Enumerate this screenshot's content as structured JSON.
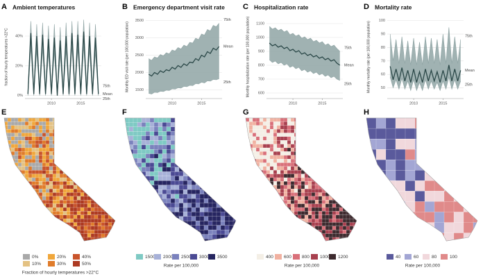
{
  "chart_data": [
    {
      "type": "line",
      "panel_label": "A",
      "title": "Ambient temperatures",
      "ylabel": "fraction of hourly temperatures >22°C",
      "x": [
        2006,
        2006.5,
        2007,
        2007.5,
        2008,
        2008.5,
        2009,
        2009.5,
        2010,
        2010.5,
        2011,
        2011.5,
        2012,
        2012.5,
        2013,
        2013.5,
        2014,
        2014.5,
        2015,
        2015.5,
        2016,
        2016.5,
        2017,
        2017.5,
        2018
      ],
      "xlim": [
        2005.5,
        2018.5
      ],
      "xticks": [
        2010,
        2015
      ],
      "ylim": [
        -2,
        54
      ],
      "yticks": [
        {
          "value": 0,
          "label": "0%"
        },
        {
          "value": 20,
          "label": "20%"
        },
        {
          "value": 40,
          "label": "40%"
        }
      ],
      "grid": true,
      "band_color": "#8fa4a4",
      "series": [
        {
          "name": "75th",
          "color": "#8fa4a4",
          "values": [
            4,
            50,
            4,
            48,
            4,
            49,
            3,
            47,
            3,
            48,
            3,
            46,
            4,
            49,
            4,
            50,
            4,
            50,
            4,
            51,
            4,
            49,
            4,
            48,
            4
          ]
        },
        {
          "name": "Mean",
          "color": "#2b4848",
          "values": [
            1,
            42,
            1,
            40,
            1,
            41,
            1,
            38,
            1,
            39,
            0,
            37,
            1,
            40,
            1,
            42,
            1,
            41,
            1,
            43,
            1,
            40,
            1,
            39,
            1
          ]
        },
        {
          "name": "25th",
          "color": "#8fa4a4",
          "values": [
            0,
            32,
            0,
            30,
            0,
            31,
            0,
            28,
            0,
            29,
            0,
            27,
            0,
            30,
            0,
            32,
            0,
            31,
            0,
            33,
            0,
            30,
            0,
            29,
            0
          ]
        }
      ]
    },
    {
      "type": "line",
      "panel_label": "B",
      "title": "Emergency department visit rate",
      "ylabel": "Monthly ED visit rate (per 100,000 population)",
      "x": [
        2006,
        2006.5,
        2007,
        2007.5,
        2008,
        2008.5,
        2009,
        2009.5,
        2010,
        2010.5,
        2011,
        2011.5,
        2012,
        2012.5,
        2013,
        2013.5,
        2014,
        2014.5,
        2015,
        2015.5,
        2016,
        2016.5,
        2017,
        2017.5,
        2018
      ],
      "xlim": [
        2005.5,
        2018.5
      ],
      "xticks": [
        2010,
        2015
      ],
      "ylim": [
        1250,
        3650
      ],
      "yticks": [
        1500,
        2000,
        2500,
        3000,
        3500
      ],
      "grid": true,
      "band_color": "#8fa4a4",
      "series": [
        {
          "name": "75th",
          "color": "#8fa4a4",
          "values": [
            2400,
            2350,
            2450,
            2420,
            2520,
            2480,
            2570,
            2540,
            2650,
            2620,
            2720,
            2680,
            2790,
            2750,
            2870,
            2850,
            2990,
            2950,
            3110,
            3080,
            3240,
            3200,
            3360,
            3320,
            3420
          ]
        },
        {
          "name": "Mean",
          "color": "#2b4848",
          "values": [
            1950,
            1900,
            2000,
            1950,
            2050,
            2000,
            2080,
            2050,
            2150,
            2100,
            2200,
            2150,
            2250,
            2200,
            2300,
            2280,
            2400,
            2350,
            2500,
            2450,
            2600,
            2550,
            2700,
            2650,
            2750
          ]
        },
        {
          "name": "25th",
          "color": "#8fa4a4",
          "values": [
            1400,
            1380,
            1430,
            1420,
            1460,
            1450,
            1490,
            1480,
            1530,
            1520,
            1560,
            1550,
            1600,
            1590,
            1630,
            1620,
            1680,
            1670,
            1720,
            1700,
            1760,
            1750,
            1800,
            1790,
            1820
          ]
        }
      ]
    },
    {
      "type": "line",
      "panel_label": "C",
      "title": "Hospitalization rate",
      "ylabel": "Monthly hospitalization rate (per 100,000 population)",
      "x": [
        2006,
        2006.5,
        2007,
        2007.5,
        2008,
        2008.5,
        2009,
        2009.5,
        2010,
        2010.5,
        2011,
        2011.5,
        2012,
        2012.5,
        2013,
        2013.5,
        2014,
        2014.5,
        2015,
        2015.5,
        2016,
        2016.5,
        2017,
        2017.5,
        2018
      ],
      "xlim": [
        2005.5,
        2018.5
      ],
      "xticks": [
        2010,
        2015
      ],
      "ylim": [
        560,
        1160
      ],
      "yticks": [
        600,
        700,
        800,
        900,
        1000,
        1100
      ],
      "grid": true,
      "band_color": "#8fa4a4",
      "series": [
        {
          "name": "75th",
          "color": "#8fa4a4",
          "values": [
            1080,
            1060,
            1070,
            1050,
            1060,
            1040,
            1050,
            1020,
            1030,
            1010,
            1020,
            995,
            1005,
            985,
            995,
            970,
            980,
            960,
            970,
            945,
            955,
            935,
            945,
            920,
            900
          ]
        },
        {
          "name": "Mean",
          "color": "#2b4848",
          "values": [
            960,
            940,
            950,
            930,
            940,
            920,
            930,
            905,
            915,
            895,
            905,
            880,
            890,
            870,
            880,
            860,
            870,
            850,
            860,
            840,
            850,
            830,
            840,
            815,
            800
          ]
        },
        {
          "name": "25th",
          "color": "#8fa4a4",
          "values": [
            840,
            820,
            830,
            810,
            820,
            800,
            810,
            785,
            795,
            775,
            785,
            760,
            770,
            750,
            760,
            740,
            750,
            730,
            740,
            720,
            730,
            710,
            720,
            700,
            690
          ]
        }
      ]
    },
    {
      "type": "line",
      "panel_label": "D",
      "title": "Mortality rate",
      "ylabel": "Monthly mortality rate (per 100,000 population)",
      "x": [
        2006,
        2006.5,
        2007,
        2007.5,
        2008,
        2008.5,
        2009,
        2009.5,
        2010,
        2010.5,
        2011,
        2011.5,
        2012,
        2012.5,
        2013,
        2013.5,
        2014,
        2014.5,
        2015,
        2015.5,
        2016,
        2016.5,
        2017,
        2017.5,
        2018
      ],
      "xlim": [
        2005.5,
        2018.5
      ],
      "xticks": [
        2010,
        2015
      ],
      "ylim": [
        42,
        104
      ],
      "yticks": [
        50,
        60,
        70,
        80,
        90,
        100
      ],
      "grid": true,
      "band_color": "#8fa4a4",
      "series": [
        {
          "name": "75th",
          "color": "#8fa4a4",
          "values": [
            90,
            70,
            86,
            68,
            88,
            68,
            85,
            67,
            87,
            67,
            84,
            67,
            88,
            68,
            87,
            68,
            86,
            67,
            90,
            68,
            95,
            68,
            88,
            68,
            86
          ]
        },
        {
          "name": "Mean",
          "color": "#2b4848",
          "values": [
            66,
            56,
            64,
            55,
            65,
            55,
            63,
            54,
            64,
            54,
            62,
            54,
            64,
            55,
            63,
            55,
            62,
            54,
            63,
            55,
            67,
            55,
            64,
            55,
            63
          ]
        },
        {
          "name": "25th",
          "color": "#8fa4a4",
          "values": [
            58,
            50,
            56,
            49,
            57,
            49,
            55,
            48,
            56,
            48,
            54,
            48,
            56,
            49,
            55,
            49,
            54,
            48,
            55,
            49,
            58,
            49,
            56,
            49,
            55
          ]
        }
      ]
    }
  ],
  "maps": [
    {
      "panel_label": "E",
      "cell": 5,
      "legend": {
        "title": "Fraction of hourly temperatures >22°C",
        "columns": 3,
        "items": [
          {
            "label": "0%",
            "color": "#a9a9a9"
          },
          {
            "label": "20%",
            "color": "#f0a73c"
          },
          {
            "label": "40%",
            "color": "#c9542b"
          },
          {
            "label": "10%",
            "color": "#e4c283"
          },
          {
            "label": "30%",
            "color": "#e07c2b"
          },
          {
            "label": "50%",
            "color": "#ad3a22"
          }
        ]
      }
    },
    {
      "panel_label": "F",
      "cell": 6,
      "legend": {
        "title": "Rate per 100,000",
        "columns": 5,
        "items": [
          {
            "label": "1500",
            "color": "#7fcac4"
          },
          {
            "label": "2000",
            "color": "#a7b1d8"
          },
          {
            "label": "2500",
            "color": "#7b82bd"
          },
          {
            "label": "3000",
            "color": "#4b4a94"
          },
          {
            "label": "3500",
            "color": "#262560"
          }
        ]
      }
    },
    {
      "panel_label": "G",
      "cell": 5,
      "legend": {
        "title": "Rate per 100,000",
        "columns": 5,
        "items": [
          {
            "label": "400",
            "color": "#f4efe6"
          },
          {
            "label": "600",
            "color": "#f1b1a1"
          },
          {
            "label": "800",
            "color": "#d9707a"
          },
          {
            "label": "1000",
            "color": "#a8404f"
          },
          {
            "label": "1200",
            "color": "#3d2a2e"
          }
        ]
      }
    },
    {
      "panel_label": "H",
      "cell": 14,
      "legend": {
        "title": "Rate per 100,000",
        "columns": 4,
        "items": [
          {
            "label": "40",
            "color": "#5a5a9c"
          },
          {
            "label": "60",
            "color": "#a3a6d4"
          },
          {
            "label": "80",
            "color": "#f1d8dc"
          },
          {
            "label": "100",
            "color": "#e08a8a"
          }
        ]
      }
    }
  ]
}
